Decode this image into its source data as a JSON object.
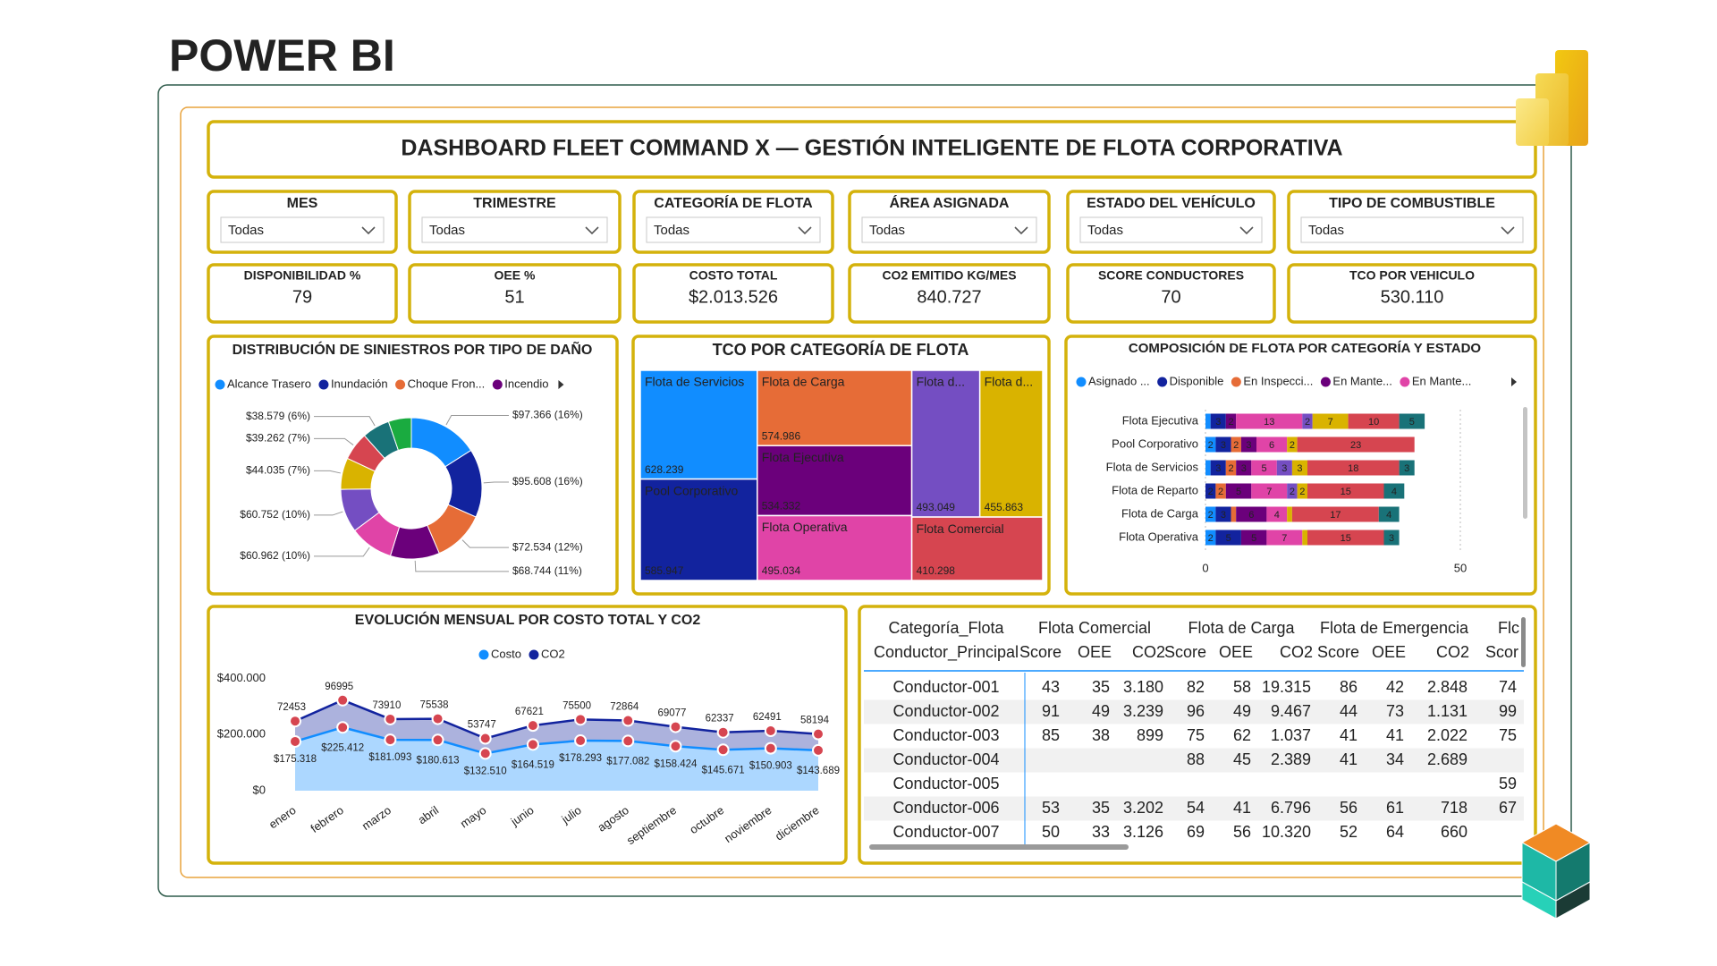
{
  "header": {
    "brand": "POWER BI",
    "title": "DASHBOARD FLEET COMMAND X — GESTIÓN INTELIGENTE DE FLOTA CORPORATIVA"
  },
  "slicers": [
    {
      "label": "MES",
      "value": "Todas"
    },
    {
      "label": "TRIMESTRE",
      "value": "Todas"
    },
    {
      "label": "CATEGORÍA DE FLOTA",
      "value": "Todas"
    },
    {
      "label": "ÁREA ASIGNADA",
      "value": "Todas"
    },
    {
      "label": "ESTADO DEL VEHÍCULO",
      "value": "Todas"
    },
    {
      "label": "TIPO DE COMBUSTIBLE",
      "value": "Todas"
    }
  ],
  "kpis": [
    {
      "label": "DISPONIBILIDAD %",
      "value": "79"
    },
    {
      "label": "OEE %",
      "value": "51"
    },
    {
      "label": "COSTO TOTAL",
      "value": "$2.013.526"
    },
    {
      "label": "CO2 EMITIDO KG/MES",
      "value": "840.727"
    },
    {
      "label": "SCORE CONDUCTORES",
      "value": "70"
    },
    {
      "label": "TCO POR VEHICULO",
      "value": "530.110"
    }
  ],
  "chart_data": [
    {
      "type": "pie",
      "title": "DISTRIBUCIÓN DE SINIESTROS POR TIPO DE DAÑO",
      "donut": true,
      "categories": [
        "Alcance Trasero",
        "Inundación",
        "Choque Fron...",
        "Incendio",
        null,
        null,
        null,
        null,
        null,
        null
      ],
      "values": [
        97366,
        95608,
        72534,
        68744,
        60962,
        60752,
        44035,
        39262,
        38579,
        32000
      ],
      "value_labels": [
        "$97.366 (16%)",
        "$95.608 (16%)",
        "$72.534 (12%)",
        "$68.744 (11%)",
        "$60.962 (10%)",
        "$60.752 (10%)",
        "$44.035 (7%)",
        "$39.262 (7%)",
        "$38.579 (6%)",
        null
      ],
      "colors": [
        "#118DFF",
        "#12239E",
        "#E66C37",
        "#6B007B",
        "#E044A7",
        "#744EC2",
        "#D9B300",
        "#D64550",
        "#197278",
        "#1AAB40"
      ]
    },
    {
      "type": "treemap",
      "title": "TCO POR CATEGORÍA DE FLOTA",
      "categories": [
        "Flota de Servicios",
        "Pool Corporativo",
        "Flota de Carga",
        "Flota Ejecutiva",
        "Flota Operativa",
        "Flota d...",
        "Flota d...",
        "Flota Comercial"
      ],
      "values": [
        628239,
        585947,
        574986,
        534332,
        495034,
        493049,
        455863,
        410298
      ],
      "value_labels": [
        "628.239",
        "585.947",
        "574.986",
        "534.332",
        "495.034",
        "493.049",
        "455.863",
        "410.298"
      ],
      "colors": [
        "#118DFF",
        "#12239E",
        "#E66C37",
        "#6B007B",
        "#E044A7",
        "#744EC2",
        "#D9B300",
        "#D64550"
      ]
    },
    {
      "type": "bar",
      "orientation": "horizontal",
      "stacked": true,
      "title": "COMPOSICIÓN DE FLOTA POR CATEGORÍA Y ESTADO",
      "categories": [
        "Flota Ejecutiva",
        "Pool Corporativo",
        "Flota de Servicios",
        "Flota de Reparto",
        "Flota de Carga",
        "Flota Operativa"
      ],
      "series": [
        {
          "name": "Asignado ...",
          "color": "#118DFF",
          "values": [
            1,
            2,
            1,
            0,
            2,
            2
          ]
        },
        {
          "name": "Disponible",
          "color": "#12239E",
          "values": [
            3,
            3,
            3,
            2,
            3,
            5
          ]
        },
        {
          "name": "En Inspecci...",
          "color": "#E66C37",
          "values": [
            0,
            2,
            2,
            2,
            1,
            0
          ]
        },
        {
          "name": "En Mante...",
          "color": "#6B007B",
          "values": [
            2,
            3,
            3,
            5,
            6,
            5
          ]
        },
        {
          "name": "En Mante...",
          "color": "#E044A7",
          "values": [
            13,
            6,
            5,
            7,
            4,
            7
          ]
        },
        {
          "name": null,
          "color": "#744EC2",
          "values": [
            2,
            0,
            3,
            2,
            0,
            0
          ]
        },
        {
          "name": null,
          "color": "#D9B300",
          "values": [
            7,
            2,
            3,
            2,
            1,
            1
          ]
        },
        {
          "name": null,
          "color": "#D64550",
          "values": [
            10,
            23,
            18,
            15,
            17,
            15
          ]
        },
        {
          "name": null,
          "color": "#197278",
          "values": [
            5,
            0,
            3,
            4,
            4,
            3
          ]
        }
      ],
      "xlim": [
        0,
        60
      ],
      "xticks": [
        0,
        50
      ],
      "grid": true
    },
    {
      "type": "area",
      "stacked": true,
      "title": "EVOLUCIÓN MENSUAL POR COSTO TOTAL Y CO2",
      "categories": [
        "enero",
        "febrero",
        "marzo",
        "abril",
        "mayo",
        "junio",
        "julio",
        "agosto",
        "septiembre",
        "octubre",
        "noviembre",
        "diciembre"
      ],
      "series": [
        {
          "name": "Costo",
          "color": "#118DFF",
          "values": [
            175318,
            225412,
            181093,
            180613,
            132510,
            164519,
            178293,
            177082,
            158424,
            145671,
            150903,
            143689
          ],
          "value_labels": [
            "$175.318",
            "$225.412",
            "$181.093",
            "$180.613",
            "$132.510",
            "$164.519",
            "$178.293",
            "$177.082",
            "$158.424",
            "$145.671",
            "$150.903",
            "$143.689"
          ]
        },
        {
          "name": "CO2",
          "color": "#12239E",
          "values": [
            72453,
            96995,
            73910,
            75538,
            53747,
            67621,
            75500,
            72864,
            69077,
            62337,
            62491,
            58194
          ]
        }
      ],
      "marker_color": "#D64550",
      "ylim": [
        0,
        430000
      ],
      "yticks": [
        {
          "value": 0,
          "label": "$0"
        },
        {
          "value": 200000,
          "label": "$200.000"
        },
        {
          "value": 400000,
          "label": "$400.000"
        }
      ],
      "grid": false
    }
  ],
  "table": {
    "row_header": [
      "Categoría_Flota",
      "Conductor_Principal"
    ],
    "groups": [
      "Flota Comercial",
      "Flota de Carga",
      "Flota de Emergencia",
      "Flc"
    ],
    "columns": [
      "Score",
      "OEE",
      "CO2",
      "Score",
      "OEE",
      "CO2",
      "Score",
      "OEE",
      "CO2",
      "Scor"
    ],
    "rows": [
      {
        "label": "Conductor-001",
        "cells": [
          "43",
          "35",
          "3.180",
          "82",
          "58",
          "19.315",
          "86",
          "42",
          "2.848",
          "74"
        ]
      },
      {
        "label": "Conductor-002",
        "cells": [
          "91",
          "49",
          "3.239",
          "96",
          "49",
          "9.467",
          "44",
          "73",
          "1.131",
          "99"
        ]
      },
      {
        "label": "Conductor-003",
        "cells": [
          "85",
          "38",
          "899",
          "75",
          "62",
          "1.037",
          "41",
          "41",
          "2.022",
          "75"
        ]
      },
      {
        "label": "Conductor-004",
        "cells": [
          null,
          null,
          null,
          "88",
          "45",
          "2.389",
          "41",
          "34",
          "2.689",
          null
        ]
      },
      {
        "label": "Conductor-005",
        "cells": [
          null,
          null,
          null,
          null,
          null,
          null,
          null,
          null,
          null,
          "59"
        ]
      },
      {
        "label": "Conductor-006",
        "cells": [
          "53",
          "35",
          "3.202",
          "54",
          "41",
          "6.796",
          "56",
          "61",
          "718",
          "67"
        ]
      },
      {
        "label": "Conductor-007",
        "cells": [
          "50",
          "33",
          "3.126",
          "69",
          "56",
          "10.320",
          "52",
          "64",
          "660",
          null
        ]
      }
    ]
  }
}
